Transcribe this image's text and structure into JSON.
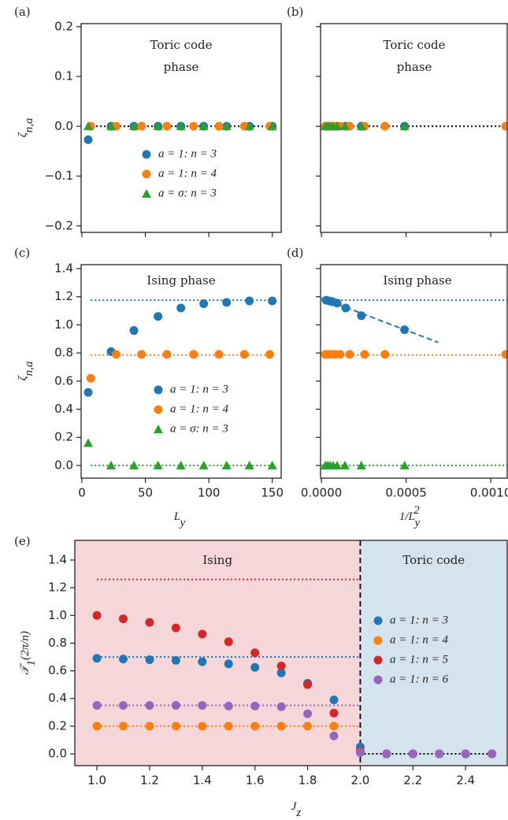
{
  "chart_data": [
    {
      "type": "scatter",
      "panel_label": "(a)",
      "title_lines": [
        "Toric code",
        "phase"
      ],
      "y_label": [
        {
          "text": "ζ"
        },
        {
          "text": "n,a",
          "shift": "sub"
        }
      ],
      "xlim": [
        -0.6,
        157
      ],
      "ylim": [
        -0.213,
        0.206
      ],
      "xticks": [
        0,
        50,
        100,
        150
      ],
      "show_xtick_labels": false,
      "yticks": [
        {
          "value": -0.2,
          "label": "−0.2"
        },
        {
          "value": -0.1,
          "label": "−0.1"
        },
        {
          "value": 0,
          "label": "0.0"
        },
        0.1,
        0.2
      ],
      "reference_lines": [
        {
          "value": 0,
          "color": "#000000",
          "x": [
            5,
            150
          ]
        }
      ],
      "series": [
        {
          "name": "a = 1:  n = 3",
          "color": "#1f77b4",
          "marker": "circle",
          "x": [
            5,
            23,
            41,
            60,
            78,
            96,
            114,
            132,
            150
          ],
          "values": [
            -0.027,
            0,
            0,
            0,
            0,
            0,
            0,
            0,
            0
          ]
        },
        {
          "name": "a = 1:  n = 4",
          "color": "#ff7f0e",
          "marker": "circle",
          "x": [
            7,
            27,
            47,
            67,
            88,
            108,
            128,
            148
          ],
          "values": [
            0,
            0,
            0,
            0,
            0,
            0,
            0,
            0
          ]
        },
        {
          "name": "a = σ:  n = 3",
          "color": "#2ca02c",
          "marker": "triangle",
          "x": [
            5,
            23,
            41,
            60,
            78,
            96,
            114,
            132,
            150
          ],
          "values": [
            0,
            0,
            0,
            0,
            0,
            0,
            0,
            0,
            0
          ]
        }
      ]
    },
    {
      "type": "scatter",
      "panel_label": "(b)",
      "title_lines": [
        "Toric code",
        "phase"
      ],
      "xlim": [
        -5e-06,
        0.001097
      ],
      "ylim": [
        -0.213,
        0.206
      ],
      "xticks": [
        {
          "value": 0,
          "label": "0.0000"
        },
        {
          "value": 0.0005,
          "label": "0.0005"
        },
        {
          "value": 0.001,
          "label": "0.0010"
        }
      ],
      "show_xtick_labels": false,
      "yticks": [
        {
          "value": -0.2,
          "label": "−0.2"
        },
        {
          "value": -0.1,
          "label": "−0.1"
        },
        {
          "value": 0,
          "label": "0.0"
        },
        0.1,
        0.2
      ],
      "show_ytick_labels": false,
      "reference_lines": [
        {
          "value": 0,
          "color": "#000000",
          "x": [
            0,
            0.0011
          ]
        }
      ],
      "series": [
        {
          "color": "#1f77b4",
          "marker": "circle",
          "x": [
            2.8e-05,
            4.6e-05,
            6.5e-05,
            9.3e-05,
            0.000144,
            0.000236,
            0.000491
          ],
          "values": [
            0,
            0,
            0,
            0,
            0,
            0,
            0
          ]
        },
        {
          "color": "#ff7f0e",
          "marker": "circle",
          "x": [
            2.3e-05,
            4.2e-05,
            6e-05,
            7.9e-05,
            0.000111,
            0.000167,
            0.000255,
            0.000375,
            0.001088
          ],
          "values": [
            0,
            0,
            0,
            0,
            0,
            0,
            0,
            0,
            0
          ]
        },
        {
          "color": "#2ca02c",
          "marker": "triangle",
          "x": [
            2.3e-05,
            3.7e-05,
            5.1e-05,
            6.9e-05,
            9.3e-05,
            0.000139,
            0.000236,
            0.000491
          ],
          "values": [
            0,
            0,
            0,
            0,
            0,
            0,
            0,
            0
          ]
        }
      ]
    },
    {
      "type": "scatter",
      "panel_label": "(c)",
      "title_lines": [
        "Ising phase"
      ],
      "x_label": [
        {
          "text": "L"
        },
        {
          "text": "y",
          "shift": "sub"
        }
      ],
      "y_label": [
        {
          "text": "ζ"
        },
        {
          "text": "n,a",
          "shift": "sub"
        }
      ],
      "xlim": [
        -0.6,
        157
      ],
      "ylim": [
        -0.09,
        1.428
      ],
      "xticks": [
        0,
        50,
        100,
        150
      ],
      "yticks": [
        {
          "value": 0,
          "label": "0.0"
        },
        0.2,
        0.4,
        0.6,
        0.8,
        {
          "value": 1,
          "label": "1.0"
        },
        1.2,
        1.4
      ],
      "reference_lines": [
        {
          "value": 1.175,
          "color": "#1f77b4",
          "x": [
            7,
            150
          ]
        },
        {
          "value": 0.785,
          "color": "#ff7f0e",
          "x": [
            7,
            150
          ]
        },
        {
          "value": 0,
          "color": "#2ca02c",
          "x": [
            7,
            150
          ]
        }
      ],
      "series": [
        {
          "name": "a = 1:  n = 3",
          "color": "#1f77b4",
          "marker": "circle",
          "x": [
            5,
            23,
            41,
            60,
            78,
            96,
            114,
            132,
            150
          ],
          "values": [
            0.52,
            0.81,
            0.96,
            1.06,
            1.12,
            1.15,
            1.16,
            1.17,
            1.17
          ]
        },
        {
          "name": "a = 1:  n = 4",
          "color": "#ff7f0e",
          "marker": "circle",
          "x": [
            7,
            27,
            47,
            67,
            88,
            108,
            128,
            148
          ],
          "values": [
            0.62,
            0.79,
            0.79,
            0.79,
            0.79,
            0.79,
            0.79,
            0.79
          ]
        },
        {
          "name": "a = σ:  n = 3",
          "color": "#2ca02c",
          "marker": "triangle",
          "x": [
            5,
            23,
            41,
            60,
            78,
            96,
            114,
            132,
            150
          ],
          "values": [
            0.16,
            0,
            0,
            0,
            0,
            0,
            0,
            0,
            0
          ]
        }
      ]
    },
    {
      "type": "scatter",
      "panel_label": "(d)",
      "title_lines": [
        "Ising phase"
      ],
      "x_label": [
        {
          "text": "1/L"
        },
        {
          "text": "y",
          "shift": "sub"
        },
        {
          "text": "2",
          "shift": "sup"
        }
      ],
      "xlim": [
        -5e-06,
        0.001097
      ],
      "ylim": [
        -0.09,
        1.428
      ],
      "xticks": [
        {
          "value": 0,
          "label": "0.0000"
        },
        {
          "value": 0.0005,
          "label": "0.0005"
        },
        {
          "value": 0.001,
          "label": "0.0010"
        }
      ],
      "yticks": [
        {
          "value": 0,
          "label": "0.0"
        },
        0.2,
        0.4,
        0.6,
        0.8,
        {
          "value": 1,
          "label": "1.0"
        },
        1.2,
        1.4
      ],
      "show_ytick_labels": false,
      "reference_lines": [
        {
          "value": 1.175,
          "color": "#1f77b4",
          "x": [
            0,
            0.0011
          ]
        },
        {
          "value": 0.785,
          "color": "#ff7f0e",
          "x": [
            0,
            0.0011
          ]
        },
        {
          "value": 0,
          "color": "#2ca02c",
          "x": [
            0,
            0.0011
          ]
        }
      ],
      "fit_line": {
        "color": "#1f77b4",
        "x": [
          0,
          0.00069
        ],
        "values": [
          1.19,
          0.875
        ]
      },
      "series": [
        {
          "color": "#1f77b4",
          "marker": "circle",
          "x": [
            2.8e-05,
            4.6e-05,
            6.5e-05,
            9.3e-05,
            0.000144,
            0.000236,
            0.000491
          ],
          "values": [
            1.175,
            1.17,
            1.165,
            1.155,
            1.12,
            1.065,
            0.965
          ]
        },
        {
          "color": "#ff7f0e",
          "marker": "circle",
          "x": [
            2.3e-05,
            4.2e-05,
            6e-05,
            7.9e-05,
            0.000111,
            0.000167,
            0.000255,
            0.000375,
            0.001088
          ],
          "values": [
            0.79,
            0.79,
            0.79,
            0.79,
            0.79,
            0.79,
            0.79,
            0.79,
            0.79
          ]
        },
        {
          "color": "#2ca02c",
          "marker": "triangle",
          "x": [
            2.3e-05,
            3.7e-05,
            5.1e-05,
            6.9e-05,
            9.3e-05,
            0.000139,
            0.000236,
            0.000491
          ],
          "values": [
            0,
            0,
            0,
            0,
            0,
            0,
            0,
            0
          ]
        }
      ]
    },
    {
      "type": "scatter",
      "panel_label": "(e)",
      "x_label": [
        {
          "text": "J"
        },
        {
          "text": "z",
          "shift": "sub"
        }
      ],
      "y_label": [
        {
          "text": "𝒯"
        },
        {
          "text": "1",
          "shift": "sub"
        },
        {
          "text": "(2π/n)"
        }
      ],
      "xlim": [
        0.916,
        2.558
      ],
      "ylim": [
        -0.085,
        1.542
      ],
      "xticks": [
        {
          "value": 1,
          "label": "1.0"
        },
        1.2,
        1.4,
        1.6,
        1.8,
        {
          "value": 2,
          "label": "2.0"
        },
        2.2,
        2.4
      ],
      "yticks": [
        {
          "value": 0,
          "label": "0.0"
        },
        0.2,
        0.4,
        0.6,
        0.8,
        {
          "value": 1,
          "label": "1.0"
        },
        1.2,
        1.4
      ],
      "split": 2.0,
      "left_region": {
        "label": "Ising",
        "color": "#f5d6d9"
      },
      "right_region": {
        "label": "Toric code",
        "color": "#d5e3ef"
      },
      "reference_lines": [
        {
          "value": 1.26,
          "color": "#d62728",
          "x": [
            1.0,
            2.0
          ]
        },
        {
          "value": 0.7,
          "color": "#1f77b4",
          "x": [
            1.0,
            2.0
          ]
        },
        {
          "value": 0.35,
          "color": "#9467bd",
          "x": [
            1.0,
            2.0
          ]
        },
        {
          "value": 0.2,
          "color": "#ff7f0e",
          "x": [
            1.0,
            2.0
          ]
        },
        {
          "value": 0,
          "color": "#000000",
          "x": [
            2.0,
            2.5
          ]
        }
      ],
      "series": [
        {
          "name": "a = 1:  n = 3",
          "color": "#1f77b4",
          "marker": "circle",
          "x": [
            1.0,
            1.1,
            1.2,
            1.3,
            1.4,
            1.5,
            1.6,
            1.7,
            1.8,
            1.9,
            2.0,
            2.1,
            2.2,
            2.3,
            2.4,
            2.5
          ],
          "values": [
            0.69,
            0.685,
            0.68,
            0.675,
            0.665,
            0.65,
            0.625,
            0.585,
            0.51,
            0.39,
            0.05,
            0,
            0,
            0,
            0,
            0
          ]
        },
        {
          "name": "a = 1:  n = 4",
          "color": "#ff7f0e",
          "marker": "circle",
          "x": [
            1.0,
            1.1,
            1.2,
            1.3,
            1.4,
            1.5,
            1.6,
            1.7,
            1.8,
            1.9,
            2.0,
            2.1,
            2.2,
            2.3,
            2.4,
            2.5
          ],
          "values": [
            0.2,
            0.2,
            0.2,
            0.2,
            0.2,
            0.2,
            0.2,
            0.2,
            0.2,
            0.2,
            0.01,
            0,
            0,
            0,
            0,
            0
          ]
        },
        {
          "name": "a = 1:  n = 5",
          "color": "#d62728",
          "marker": "circle",
          "x": [
            1.0,
            1.1,
            1.2,
            1.3,
            1.4,
            1.5,
            1.6,
            1.7,
            1.8,
            1.9,
            2.0,
            2.1,
            2.2,
            2.3,
            2.4,
            2.5
          ],
          "values": [
            1.0,
            0.975,
            0.95,
            0.91,
            0.865,
            0.81,
            0.73,
            0.635,
            0.5,
            0.295,
            0.02,
            0,
            0,
            0,
            0,
            0
          ]
        },
        {
          "name": "a = 1:  n = 6",
          "color": "#9467bd",
          "marker": "circle",
          "x": [
            1.0,
            1.1,
            1.2,
            1.3,
            1.4,
            1.5,
            1.6,
            1.7,
            1.8,
            1.9,
            2.0,
            2.1,
            2.2,
            2.3,
            2.4,
            2.5
          ],
          "values": [
            0.35,
            0.35,
            0.35,
            0.35,
            0.35,
            0.345,
            0.345,
            0.34,
            0.29,
            0.13,
            0.01,
            0,
            0,
            0,
            0,
            0
          ]
        }
      ]
    }
  ]
}
